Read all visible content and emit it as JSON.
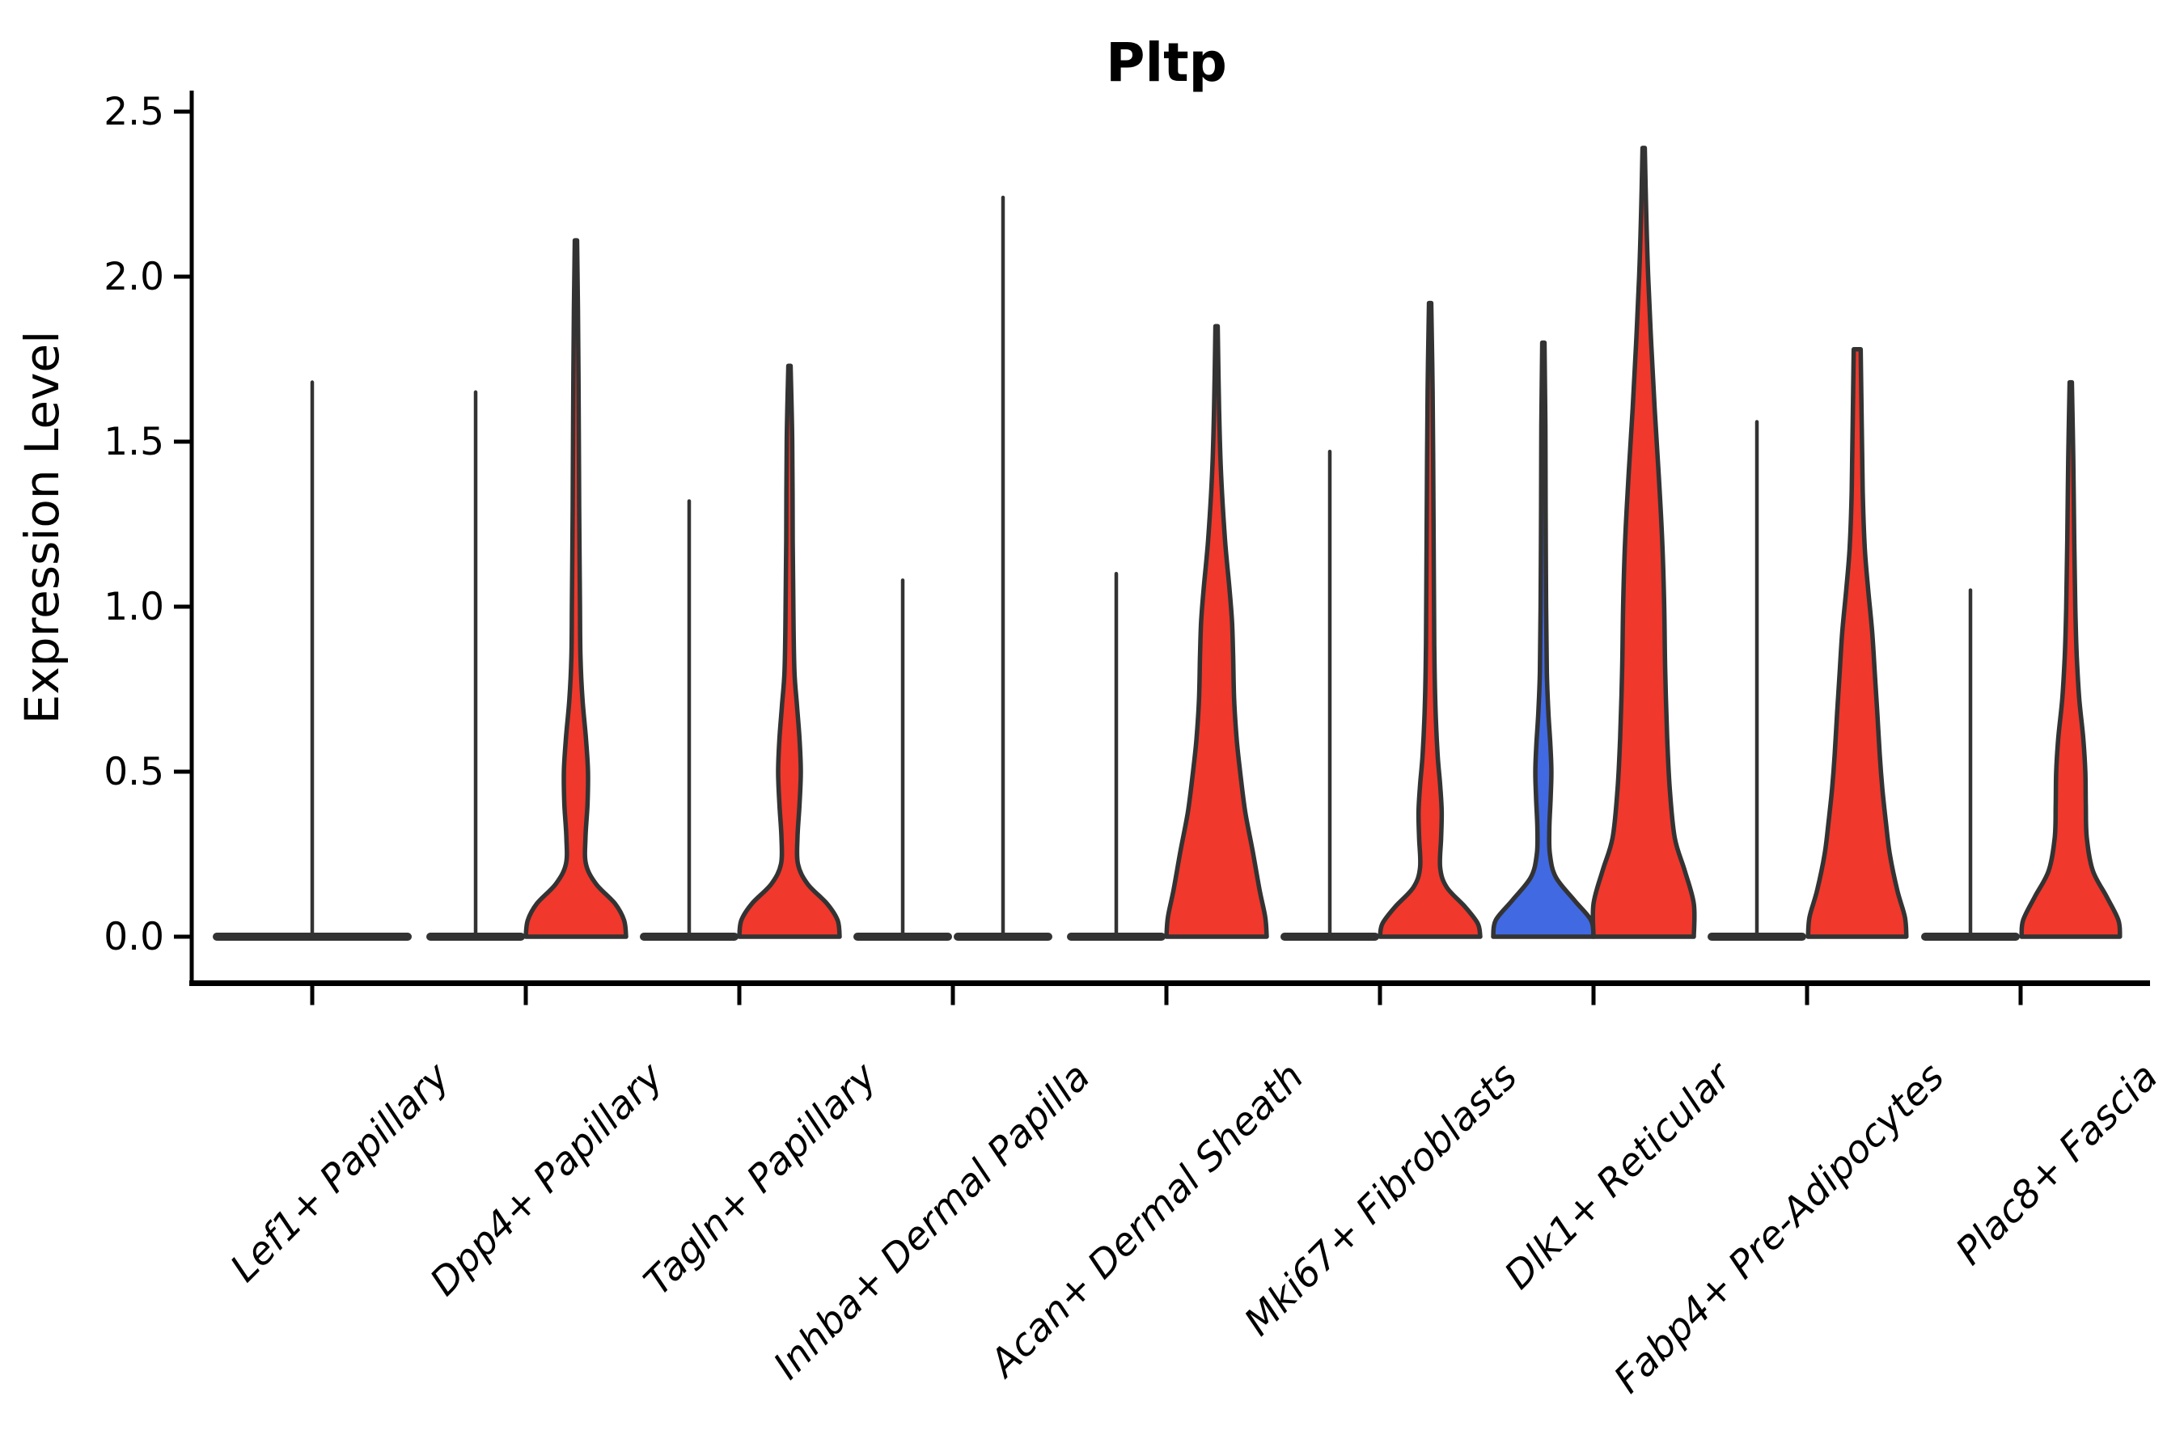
{
  "chart_data": {
    "type": "violin",
    "title": "Pltp",
    "ylabel": "Expression Level",
    "xlabel": "",
    "ylim": [
      0,
      2.5
    ],
    "yticks": [
      0.0,
      0.5,
      1.0,
      1.5,
      2.0,
      2.5
    ],
    "ytick_labels": [
      "0.0",
      "0.5",
      "1.0",
      "1.5",
      "2.0",
      "2.5"
    ],
    "grid": false,
    "legend": "none",
    "categories": [
      "Lef1+ Papillary",
      "Dpp4+ Papillary",
      "Tagln+ Papillary",
      "Inhba+ Dermal Papilla",
      "Acan+ Dermal Sheath",
      "Mki67+ Fibroblasts",
      "Dlk1+ Reticular",
      "Fabp4+ Pre-Adipocytes",
      "Plac8+ Fascia"
    ],
    "colors": {
      "red": "#f0382c",
      "blue": "#4169e1",
      "outline": "#333333",
      "axis": "#000000"
    },
    "violins": [
      {
        "category": "Lef1+ Papillary",
        "position": "center",
        "shape": "flat-with-spike",
        "max": 1.68,
        "fill": null,
        "width_units": 2
      },
      {
        "category": "Dpp4+ Papillary",
        "position": "left",
        "shape": "flat-with-spike",
        "max": 1.65,
        "fill": null,
        "width_units": 1
      },
      {
        "category": "Dpp4+ Papillary",
        "position": "right",
        "shape": "body",
        "max": 2.11,
        "fill": "red",
        "width_units": 1,
        "profile": [
          [
            0,
            1.0
          ],
          [
            0.05,
            0.96
          ],
          [
            0.1,
            0.78
          ],
          [
            0.16,
            0.4
          ],
          [
            0.22,
            0.2
          ],
          [
            0.3,
            0.19
          ],
          [
            0.4,
            0.23
          ],
          [
            0.5,
            0.24
          ],
          [
            0.6,
            0.2
          ],
          [
            0.72,
            0.13
          ],
          [
            0.85,
            0.09
          ],
          [
            1.0,
            0.08
          ],
          [
            1.3,
            0.065
          ],
          [
            1.6,
            0.055
          ],
          [
            1.9,
            0.04
          ],
          [
            2.11,
            0.022
          ]
        ]
      },
      {
        "category": "Tagln+ Papillary",
        "position": "left",
        "shape": "flat-with-spike",
        "max": 1.32,
        "fill": null,
        "width_units": 1
      },
      {
        "category": "Tagln+ Papillary",
        "position": "right",
        "shape": "body",
        "max": 1.73,
        "fill": "red",
        "width_units": 1,
        "profile": [
          [
            0,
            1.0
          ],
          [
            0.05,
            0.96
          ],
          [
            0.1,
            0.75
          ],
          [
            0.16,
            0.36
          ],
          [
            0.22,
            0.17
          ],
          [
            0.3,
            0.16
          ],
          [
            0.4,
            0.2
          ],
          [
            0.5,
            0.225
          ],
          [
            0.6,
            0.2
          ],
          [
            0.7,
            0.15
          ],
          [
            0.8,
            0.1
          ],
          [
            0.95,
            0.08
          ],
          [
            1.2,
            0.065
          ],
          [
            1.5,
            0.055
          ],
          [
            1.73,
            0.022
          ]
        ]
      },
      {
        "category": "Inhba+ Dermal Papilla",
        "position": "left",
        "shape": "flat-with-spike",
        "max": 1.08,
        "fill": null,
        "width_units": 1
      },
      {
        "category": "Inhba+ Dermal Papilla",
        "position": "right",
        "shape": "flat-with-spike",
        "max": 2.24,
        "fill": null,
        "width_units": 1
      },
      {
        "category": "Acan+ Dermal Sheath",
        "position": "left",
        "shape": "flat-with-spike",
        "max": 1.1,
        "fill": null,
        "width_units": 1
      },
      {
        "category": "Acan+ Dermal Sheath",
        "position": "right",
        "shape": "body",
        "max": 1.85,
        "fill": "red",
        "width_units": 1,
        "profile": [
          [
            0,
            1.0
          ],
          [
            0.06,
            0.97
          ],
          [
            0.14,
            0.86
          ],
          [
            0.26,
            0.72
          ],
          [
            0.38,
            0.57
          ],
          [
            0.5,
            0.47
          ],
          [
            0.6,
            0.4
          ],
          [
            0.72,
            0.35
          ],
          [
            0.85,
            0.33
          ],
          [
            0.95,
            0.31
          ],
          [
            1.05,
            0.26
          ],
          [
            1.2,
            0.17
          ],
          [
            1.4,
            0.09
          ],
          [
            1.6,
            0.05
          ],
          [
            1.85,
            0.022
          ]
        ]
      },
      {
        "category": "Mki67+ Fibroblasts",
        "position": "left",
        "shape": "flat-with-spike",
        "max": 1.47,
        "fill": null,
        "width_units": 1
      },
      {
        "category": "Mki67+ Fibroblasts",
        "position": "right",
        "shape": "body",
        "max": 1.92,
        "fill": "red",
        "width_units": 1,
        "profile": [
          [
            0,
            1.0
          ],
          [
            0.04,
            0.95
          ],
          [
            0.09,
            0.7
          ],
          [
            0.15,
            0.33
          ],
          [
            0.21,
            0.2
          ],
          [
            0.3,
            0.22
          ],
          [
            0.38,
            0.23
          ],
          [
            0.46,
            0.2
          ],
          [
            0.55,
            0.15
          ],
          [
            0.68,
            0.11
          ],
          [
            0.85,
            0.085
          ],
          [
            1.05,
            0.075
          ],
          [
            1.35,
            0.065
          ],
          [
            1.65,
            0.05
          ],
          [
            1.92,
            0.022
          ]
        ]
      },
      {
        "category": "Dlk1+ Reticular",
        "position": "left",
        "shape": "body",
        "max": 1.8,
        "fill": "blue",
        "width_units": 1,
        "profile": [
          [
            0,
            1.0
          ],
          [
            0.05,
            0.95
          ],
          [
            0.11,
            0.62
          ],
          [
            0.18,
            0.25
          ],
          [
            0.25,
            0.13
          ],
          [
            0.33,
            0.12
          ],
          [
            0.42,
            0.145
          ],
          [
            0.5,
            0.16
          ],
          [
            0.58,
            0.14
          ],
          [
            0.68,
            0.1
          ],
          [
            0.8,
            0.07
          ],
          [
            1.0,
            0.055
          ],
          [
            1.3,
            0.045
          ],
          [
            1.55,
            0.04
          ],
          [
            1.8,
            0.022
          ]
        ]
      },
      {
        "category": "Dlk1+ Reticular",
        "position": "right",
        "shape": "body",
        "max": 2.39,
        "fill": "red",
        "width_units": 1,
        "profile": [
          [
            0,
            1.0
          ],
          [
            0.1,
            1.0
          ],
          [
            0.2,
            0.82
          ],
          [
            0.3,
            0.62
          ],
          [
            0.45,
            0.52
          ],
          [
            0.6,
            0.47
          ],
          [
            0.8,
            0.43
          ],
          [
            1.0,
            0.41
          ],
          [
            1.2,
            0.37
          ],
          [
            1.4,
            0.3
          ],
          [
            1.6,
            0.22
          ],
          [
            1.8,
            0.15
          ],
          [
            2.0,
            0.09
          ],
          [
            2.2,
            0.05
          ],
          [
            2.39,
            0.022
          ]
        ]
      },
      {
        "category": "Fabp4+ Pre-Adipocytes",
        "position": "left",
        "shape": "flat-with-spike",
        "max": 1.56,
        "fill": null,
        "width_units": 1
      },
      {
        "category": "Fabp4+ Pre-Adipocytes",
        "position": "right",
        "shape": "body",
        "max": 1.78,
        "fill": "red",
        "width_units": 1,
        "profile": [
          [
            0,
            0.98
          ],
          [
            0.06,
            0.95
          ],
          [
            0.14,
            0.8
          ],
          [
            0.25,
            0.65
          ],
          [
            0.35,
            0.57
          ],
          [
            0.45,
            0.5
          ],
          [
            0.55,
            0.45
          ],
          [
            0.68,
            0.4
          ],
          [
            0.8,
            0.35
          ],
          [
            0.92,
            0.3
          ],
          [
            1.05,
            0.22
          ],
          [
            1.18,
            0.15
          ],
          [
            1.35,
            0.11
          ],
          [
            1.55,
            0.09
          ],
          [
            1.78,
            0.07
          ]
        ]
      },
      {
        "category": "Plac8+ Fascia",
        "position": "left",
        "shape": "flat-with-spike",
        "max": 1.05,
        "fill": null,
        "width_units": 1
      },
      {
        "category": "Plac8+ Fascia",
        "position": "right",
        "shape": "body",
        "max": 1.68,
        "fill": "red",
        "width_units": 1,
        "profile": [
          [
            0,
            0.98
          ],
          [
            0.05,
            0.95
          ],
          [
            0.12,
            0.72
          ],
          [
            0.2,
            0.44
          ],
          [
            0.3,
            0.32
          ],
          [
            0.4,
            0.3
          ],
          [
            0.5,
            0.29
          ],
          [
            0.6,
            0.25
          ],
          [
            0.72,
            0.17
          ],
          [
            0.85,
            0.12
          ],
          [
            1.0,
            0.09
          ],
          [
            1.2,
            0.07
          ],
          [
            1.45,
            0.05
          ],
          [
            1.68,
            0.022
          ]
        ]
      }
    ]
  }
}
